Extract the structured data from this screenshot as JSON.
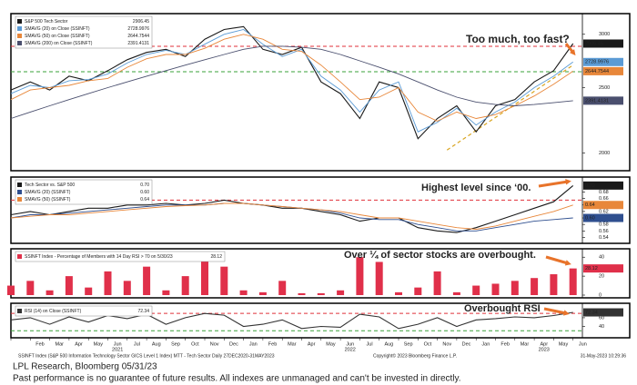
{
  "x_axis": {
    "categories": [
      null,
      "Feb",
      "Mar",
      "Apr",
      "May",
      "Jun",
      "Jul",
      "Aug",
      "Sep",
      "Oct",
      "Nov",
      "Dec",
      "Jan",
      "Feb",
      "Mar",
      "Apr",
      "May",
      "Jun",
      "Jul",
      "Aug",
      "Sep",
      "Oct",
      "Nov",
      "Dec",
      "Jan",
      "Feb",
      "Mar",
      "Apr",
      "May",
      "Jun"
    ],
    "years": [
      "2021",
      "2022",
      "2023"
    ]
  },
  "chart_data": [
    {
      "type": "line",
      "log_scale": true,
      "ylim": [
        1900,
        3180
      ],
      "yticks": [
        2000,
        2500,
        3000
      ],
      "grid": false,
      "annotation": "Too much, too fast?",
      "levels": [
        {
          "value": 2880,
          "color": "#e0303a"
        },
        {
          "value": 2640,
          "color": "#3aa03a"
        }
      ],
      "trend_line": {
        "x": [
          22.5,
          29
        ],
        "y": [
          2020,
          2700
        ],
        "color": "#d9a520"
      },
      "series": [
        {
          "name": "S&P 500 Tech Sector",
          "color": "#1a1a1a",
          "values": [
            2480,
            2550,
            2480,
            2600,
            2560,
            2650,
            2750,
            2820,
            2850,
            2780,
            2950,
            3050,
            3080,
            2850,
            2800,
            2870,
            2550,
            2450,
            2250,
            2550,
            2500,
            2100,
            2250,
            2350,
            2150,
            2350,
            2400,
            2550,
            2650,
            2906.45
          ]
        },
        {
          "name": "SMAVG (20)  on Close (SSINFT)",
          "color": "#5b9bd5",
          "values": [
            2450,
            2520,
            2500,
            2560,
            2570,
            2620,
            2720,
            2800,
            2840,
            2800,
            2900,
            3000,
            3050,
            2900,
            2780,
            2850,
            2600,
            2480,
            2300,
            2480,
            2550,
            2150,
            2220,
            2330,
            2200,
            2300,
            2380,
            2500,
            2600,
            2728.9976
          ]
        },
        {
          "name": "SMAVG (50)  on Close (SSINFT)",
          "color": "#e8873a",
          "values": [
            2400,
            2480,
            2500,
            2520,
            2560,
            2580,
            2680,
            2760,
            2800,
            2800,
            2860,
            2950,
            3000,
            2950,
            2850,
            2830,
            2700,
            2550,
            2400,
            2420,
            2500,
            2300,
            2230,
            2300,
            2250,
            2280,
            2350,
            2430,
            2530,
            2644.7544
          ]
        },
        {
          "name": "SMAVG (200)  on Close (SSINFT)",
          "color": "#4a4f6e",
          "values": [
            2250,
            2300,
            2350,
            2400,
            2450,
            2500,
            2550,
            2600,
            2650,
            2700,
            2750,
            2800,
            2850,
            2880,
            2880,
            2870,
            2850,
            2800,
            2740,
            2680,
            2620,
            2550,
            2480,
            2420,
            2380,
            2360,
            2350,
            2360,
            2375,
            2391.4131
          ]
        }
      ]
    },
    {
      "type": "line",
      "ylim": [
        0.53,
        0.715
      ],
      "yticks": [
        0.54,
        0.56,
        0.58,
        {
          "value": 0.6,
          "label": "0.60"
        },
        0.62,
        0.64,
        0.66,
        0.68
      ],
      "grid": false,
      "annotation": "Highest level since ‘00.",
      "levels": [
        {
          "value": 0.655,
          "color": "#e0303a"
        }
      ],
      "series": [
        {
          "name": "Tech Sector vs. S&P 500",
          "color": "#1a1a1a",
          "values": [
            0.61,
            0.62,
            0.61,
            0.62,
            0.63,
            0.63,
            0.64,
            0.64,
            0.645,
            0.64,
            0.645,
            0.655,
            0.645,
            0.64,
            0.63,
            0.63,
            0.62,
            0.61,
            0.59,
            0.6,
            0.6,
            0.57,
            0.56,
            0.555,
            0.57,
            0.59,
            0.61,
            0.63,
            0.65,
            0.7
          ],
          "value_labels": [
            null,
            null,
            null,
            null,
            null,
            null,
            null,
            null,
            null,
            null,
            null,
            null,
            null,
            null,
            null,
            null,
            null,
            null,
            null,
            null,
            null,
            null,
            null,
            null,
            null,
            null,
            null,
            null,
            null,
            "0.70"
          ]
        },
        {
          "name": "SMAVG (20)  (SSINFT)",
          "color": "#2f4f8f",
          "values": [
            0.6,
            0.61,
            0.61,
            0.615,
            0.62,
            0.625,
            0.63,
            0.635,
            0.64,
            0.64,
            0.64,
            0.645,
            0.645,
            0.64,
            0.635,
            0.63,
            0.625,
            0.615,
            0.6,
            0.595,
            0.595,
            0.58,
            0.57,
            0.56,
            0.56,
            0.57,
            0.58,
            0.59,
            0.595,
            0.6
          ],
          "value_labels": [
            null,
            null,
            null,
            null,
            null,
            null,
            null,
            null,
            null,
            null,
            null,
            null,
            null,
            null,
            null,
            null,
            null,
            null,
            null,
            null,
            null,
            null,
            null,
            null,
            null,
            null,
            null,
            null,
            null,
            "0.60"
          ]
        },
        {
          "name": "SMAVG (50)  (SSINFT)",
          "color": "#e8873a",
          "values": [
            0.6,
            0.605,
            0.61,
            0.61,
            0.615,
            0.62,
            0.625,
            0.63,
            0.635,
            0.638,
            0.64,
            0.645,
            0.645,
            0.64,
            0.635,
            0.63,
            0.625,
            0.62,
            0.61,
            0.6,
            0.6,
            0.59,
            0.58,
            0.57,
            0.565,
            0.575,
            0.59,
            0.605,
            0.62,
            0.64
          ]
        }
      ]
    },
    {
      "type": "bar",
      "ylim": [
        0,
        45
      ],
      "yticks": [
        0,
        20,
        40
      ],
      "grid": false,
      "annotation": "Over ¼ of sector stocks are overbought.",
      "series": [
        {
          "name": "SSINFT Index - Percentage of Members with 14 Day RSI > 70 on 5/30/23",
          "color": "#e0304a",
          "values": [
            10,
            15,
            5,
            20,
            8,
            25,
            15,
            30,
            5,
            20,
            38,
            30,
            5,
            3,
            15,
            2,
            2,
            5,
            40,
            35,
            3,
            8,
            25,
            3,
            10,
            12,
            15,
            18,
            22,
            28.12
          ]
        }
      ]
    },
    {
      "type": "line",
      "ylim": [
        20,
        85
      ],
      "yticks": [
        40,
        60
      ],
      "grid": false,
      "annotation": "Overbought RSI",
      "levels": [
        {
          "value": 70,
          "color": "#e0303a"
        },
        {
          "value": 30,
          "color": "#3aa03a"
        }
      ],
      "series": [
        {
          "name": "RSI (14)  on Close (SSINFT)",
          "color": "#333333",
          "values": [
            55,
            60,
            45,
            62,
            50,
            65,
            58,
            68,
            45,
            60,
            70,
            66,
            40,
            45,
            55,
            35,
            40,
            38,
            68,
            62,
            35,
            45,
            60,
            40,
            55,
            58,
            62,
            60,
            65,
            72.34
          ]
        }
      ]
    }
  ],
  "footer": {
    "source_line": "SSINFT Index (S&P 500 Information Technology Sector GICS Level 1 Index) MTT - Tech Sector  Daily 27DEC2020-31MAY2023",
    "copyright": "Copyright© 2023 Bloomberg Finance L.P.",
    "timestamp": "31-May-2023 10:29:36",
    "credit": "LPL Research, Bloomberg 05/31/23",
    "disclaimer": "Past performance is no guarantee of future results. All indexes are unmanaged and can't be invested in directly."
  }
}
